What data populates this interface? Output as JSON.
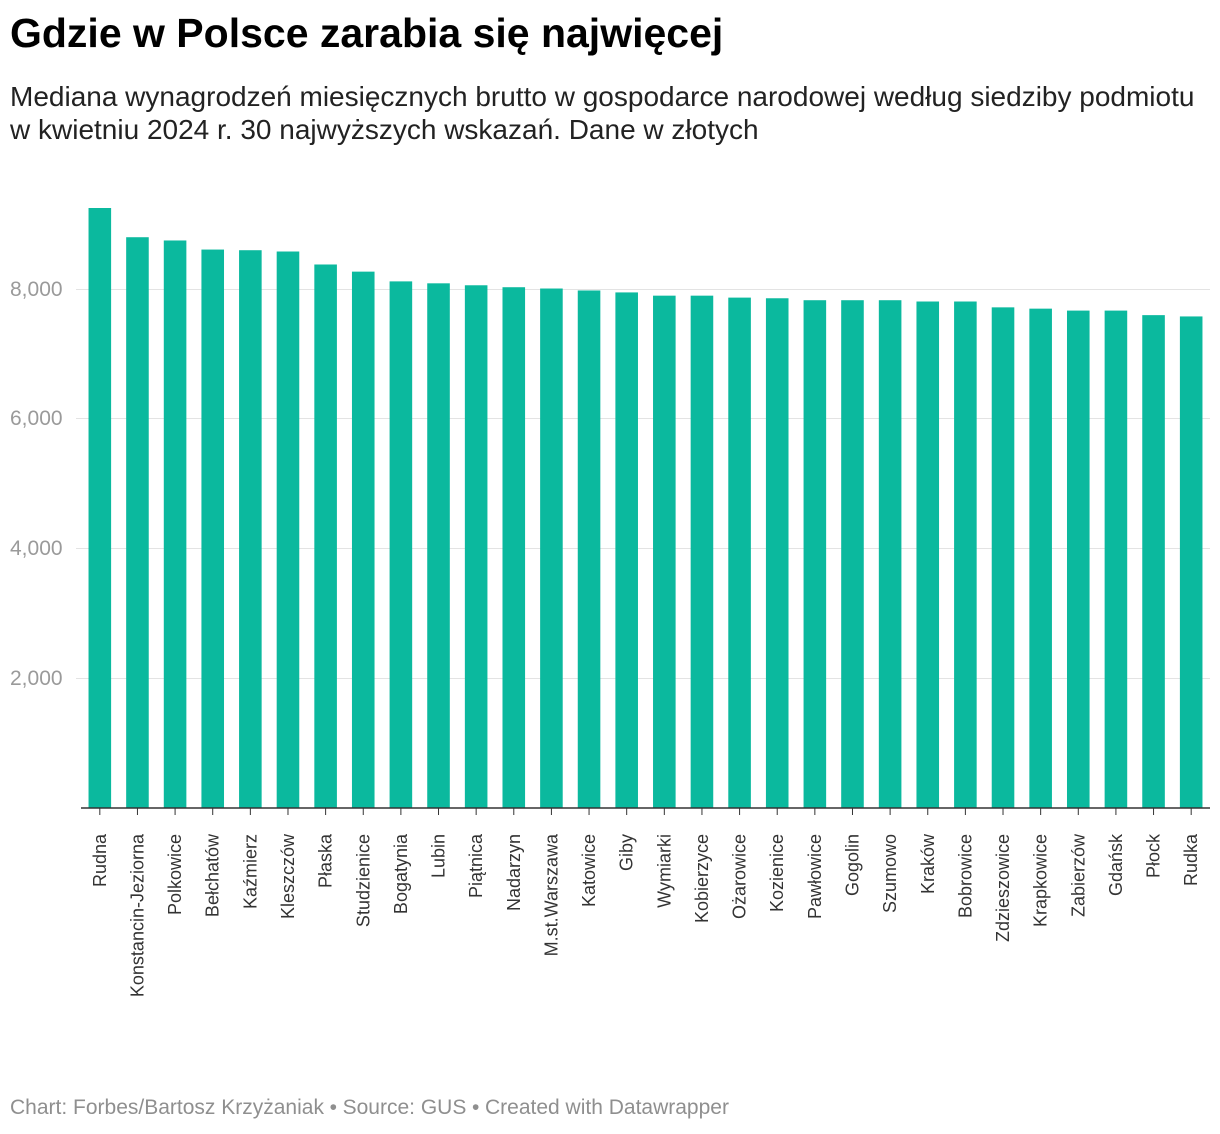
{
  "title": "Gdzie w Polsce zarabia się najwięcej",
  "subtitle": "Mediana wynagrodzeń miesięcznych brutto w gospodarce narodowej według siedziby podmiotu w kwietniu 2024 r. 30 najwyższych wskazań. Dane w złotych",
  "footer": {
    "byline": "Chart: Forbes/Bartosz Krzyżaniak",
    "separator": "•",
    "source": "Source: GUS",
    "credit": "Created with Datawrapper"
  },
  "colors": {
    "bar": "#0bb99e",
    "gridline": "#e3e3e3",
    "axis": "#333333",
    "y_tick_label": "#9a9a9a",
    "x_tick_label": "#333333",
    "title": "#000000",
    "subtitle": "#222222",
    "footer": "#8f8f8f"
  },
  "chart_data": {
    "type": "bar",
    "categories": [
      "Rudna",
      "Konstancin-Jeziorna",
      "Polkowice",
      "Bełchatów",
      "Kaźmierz",
      "Kleszczów",
      "Płaska",
      "Studzienice",
      "Bogatynia",
      "Lubin",
      "Piątnica",
      "Nadarzyn",
      "M.st.Warszawa",
      "Katowice",
      "Giby",
      "Wymiarki",
      "Kobierzyce",
      "Ożarowice",
      "Kozienice",
      "Pawłowice",
      "Gogolin",
      "Szumowo",
      "Kraków",
      "Bobrowice",
      "Zdzieszowice",
      "Krapkowice",
      "Zabierzów",
      "Gdańsk",
      "Płock",
      "Rudka"
    ],
    "values": [
      9240,
      8790,
      8740,
      8600,
      8590,
      8570,
      8370,
      8260,
      8110,
      8080,
      8050,
      8020,
      8000,
      7970,
      7940,
      7890,
      7890,
      7860,
      7850,
      7820,
      7820,
      7820,
      7800,
      7800,
      7710,
      7690,
      7660,
      7660,
      7590,
      7570
    ],
    "ylim": [
      0,
      9240
    ],
    "yticks": [
      2000,
      4000,
      6000,
      8000
    ],
    "ytick_labels": [
      "2,000",
      "4,000",
      "6,000",
      "8,000"
    ],
    "grid": true
  }
}
